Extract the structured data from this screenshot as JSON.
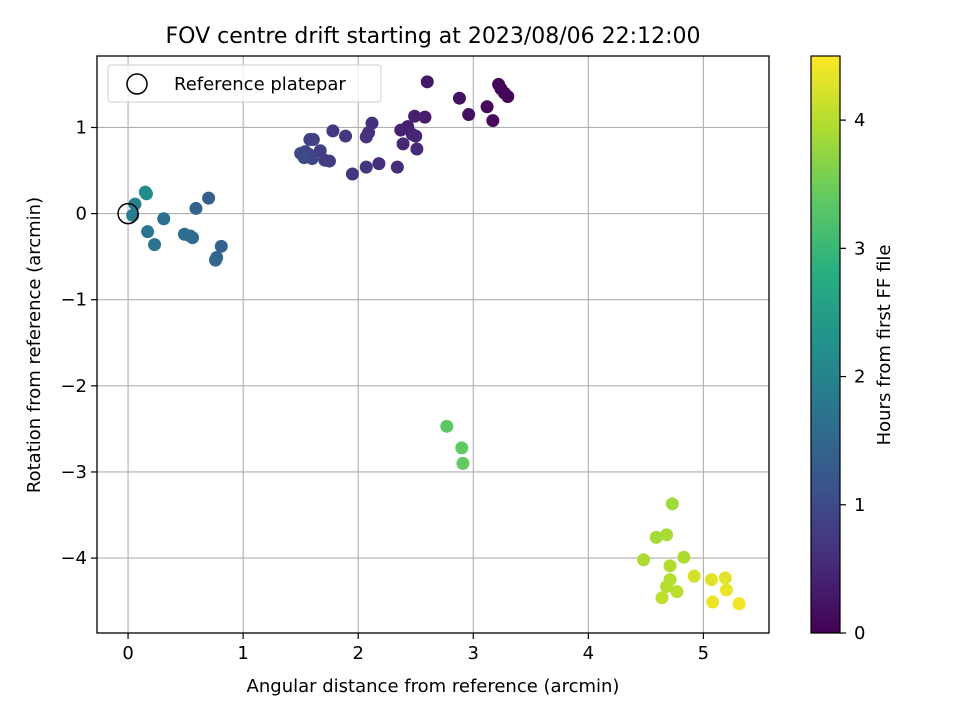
{
  "chart_data": {
    "type": "scatter",
    "title": "FOV centre drift starting at 2023/08/06 22:12:00",
    "xlabel": "Angular distance from reference (arcmin)",
    "ylabel": "Rotation from reference (arcmin)",
    "xlim": [
      -0.27,
      5.57
    ],
    "ylim": [
      -4.87,
      1.83
    ],
    "xticks": [
      0,
      1,
      2,
      3,
      4,
      5
    ],
    "yticks": [
      1,
      0,
      -1,
      -2,
      -3,
      -4
    ],
    "xtick_labels": [
      "0",
      "1",
      "2",
      "3",
      "4",
      "5"
    ],
    "ytick_labels": [
      "1",
      "0",
      "−1",
      "−2",
      "−3",
      "−4"
    ],
    "grid": true,
    "legend": {
      "placement": "top-left",
      "entries": [
        "Reference platepar"
      ]
    },
    "reference_point": {
      "x": 0.0,
      "y": 0.0,
      "marker": "open-circle"
    },
    "colorbar": {
      "label": "Hours from first FF file",
      "range": [
        0,
        4.5
      ],
      "ticks": [
        0,
        1,
        2,
        3,
        4
      ],
      "tick_labels": [
        "0",
        "1",
        "2",
        "3",
        "4"
      ],
      "colormap": "viridis"
    },
    "points": [
      {
        "x": 3.3,
        "y": 1.36,
        "c": 0.05
      },
      {
        "x": 3.27,
        "y": 1.4,
        "c": 0.06
      },
      {
        "x": 3.24,
        "y": 1.45,
        "c": 0.07
      },
      {
        "x": 3.22,
        "y": 1.5,
        "c": 0.08
      },
      {
        "x": 3.12,
        "y": 1.24,
        "c": 0.1
      },
      {
        "x": 3.17,
        "y": 1.08,
        "c": 0.12
      },
      {
        "x": 2.96,
        "y": 1.15,
        "c": 0.18
      },
      {
        "x": 2.88,
        "y": 1.34,
        "c": 0.22
      },
      {
        "x": 2.6,
        "y": 1.53,
        "c": 0.28
      },
      {
        "x": 2.58,
        "y": 1.12,
        "c": 0.35
      },
      {
        "x": 2.49,
        "y": 1.13,
        "c": 0.38
      },
      {
        "x": 2.43,
        "y": 1.01,
        "c": 0.4
      },
      {
        "x": 2.37,
        "y": 0.97,
        "c": 0.42
      },
      {
        "x": 2.47,
        "y": 0.92,
        "c": 0.45
      },
      {
        "x": 2.5,
        "y": 0.9,
        "c": 0.47
      },
      {
        "x": 2.39,
        "y": 0.81,
        "c": 0.5
      },
      {
        "x": 2.51,
        "y": 0.75,
        "c": 0.52
      },
      {
        "x": 2.34,
        "y": 0.54,
        "c": 0.55
      },
      {
        "x": 2.18,
        "y": 0.58,
        "c": 0.58
      },
      {
        "x": 2.12,
        "y": 1.05,
        "c": 0.6
      },
      {
        "x": 2.09,
        "y": 0.94,
        "c": 0.62
      },
      {
        "x": 2.07,
        "y": 0.89,
        "c": 0.65
      },
      {
        "x": 2.07,
        "y": 0.54,
        "c": 0.68
      },
      {
        "x": 1.95,
        "y": 0.46,
        "c": 0.7
      },
      {
        "x": 1.89,
        "y": 0.9,
        "c": 0.72
      },
      {
        "x": 1.78,
        "y": 0.96,
        "c": 0.75
      },
      {
        "x": 1.75,
        "y": 0.61,
        "c": 0.78
      },
      {
        "x": 1.71,
        "y": 0.62,
        "c": 0.8
      },
      {
        "x": 1.67,
        "y": 0.73,
        "c": 0.82
      },
      {
        "x": 1.61,
        "y": 0.86,
        "c": 0.85
      },
      {
        "x": 1.58,
        "y": 0.86,
        "c": 0.87
      },
      {
        "x": 1.57,
        "y": 0.69,
        "c": 0.9
      },
      {
        "x": 1.6,
        "y": 0.64,
        "c": 0.92
      },
      {
        "x": 1.54,
        "y": 0.72,
        "c": 0.94
      },
      {
        "x": 1.5,
        "y": 0.7,
        "c": 0.97
      },
      {
        "x": 1.53,
        "y": 0.65,
        "c": 0.99
      },
      {
        "x": 0.7,
        "y": 0.18,
        "c": 1.35
      },
      {
        "x": 0.59,
        "y": 0.06,
        "c": 1.4
      },
      {
        "x": 0.81,
        "y": -0.38,
        "c": 1.45
      },
      {
        "x": 0.77,
        "y": -0.51,
        "c": 1.5
      },
      {
        "x": 0.76,
        "y": -0.54,
        "c": 1.52
      },
      {
        "x": 0.56,
        "y": -0.28,
        "c": 1.55
      },
      {
        "x": 0.54,
        "y": -0.26,
        "c": 1.58
      },
      {
        "x": 0.49,
        "y": -0.24,
        "c": 1.6
      },
      {
        "x": 0.31,
        "y": -0.06,
        "c": 1.65
      },
      {
        "x": 0.23,
        "y": -0.36,
        "c": 1.7
      },
      {
        "x": 0.17,
        "y": -0.21,
        "c": 1.75
      },
      {
        "x": 0.04,
        "y": -0.02,
        "c": 1.85
      },
      {
        "x": 0.06,
        "y": 0.11,
        "c": 1.95
      },
      {
        "x": 0.15,
        "y": 0.25,
        "c": 2.1
      },
      {
        "x": 0.16,
        "y": 0.23,
        "c": 2.15
      },
      {
        "x": 2.77,
        "y": -2.47,
        "c": 3.35
      },
      {
        "x": 2.9,
        "y": -2.72,
        "c": 3.38
      },
      {
        "x": 2.91,
        "y": -2.9,
        "c": 3.4
      },
      {
        "x": 4.73,
        "y": -3.37,
        "c": 3.85
      },
      {
        "x": 4.59,
        "y": -3.76,
        "c": 3.87
      },
      {
        "x": 4.68,
        "y": -3.73,
        "c": 3.9
      },
      {
        "x": 4.48,
        "y": -4.02,
        "c": 3.92
      },
      {
        "x": 4.83,
        "y": -3.99,
        "c": 3.94
      },
      {
        "x": 4.71,
        "y": -4.09,
        "c": 3.96
      },
      {
        "x": 4.71,
        "y": -4.25,
        "c": 3.98
      },
      {
        "x": 4.68,
        "y": -4.33,
        "c": 4.0
      },
      {
        "x": 4.77,
        "y": -4.39,
        "c": 4.02
      },
      {
        "x": 4.64,
        "y": -4.46,
        "c": 4.05
      },
      {
        "x": 4.92,
        "y": -4.21,
        "c": 4.2
      },
      {
        "x": 5.07,
        "y": -4.25,
        "c": 4.3
      },
      {
        "x": 5.19,
        "y": -4.23,
        "c": 4.32
      },
      {
        "x": 5.2,
        "y": -4.37,
        "c": 4.35
      },
      {
        "x": 5.08,
        "y": -4.51,
        "c": 4.38
      },
      {
        "x": 5.31,
        "y": -4.53,
        "c": 4.42
      }
    ]
  }
}
